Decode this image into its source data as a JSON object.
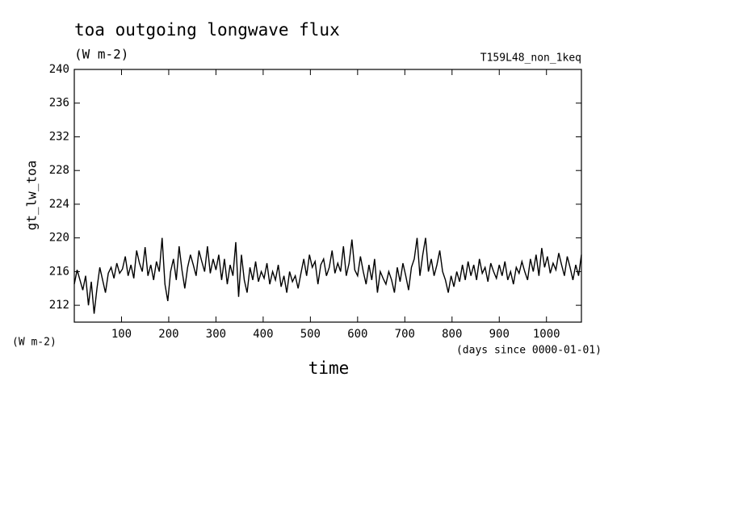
{
  "chart_data": {
    "type": "line",
    "title": "toa outgoing longwave flux",
    "subtitle": "(W m-2)",
    "annotation": "T159L48_non_1keq",
    "ylabel": "gt_lw_toa",
    "yunit": "(W m-2)",
    "xunit": "(days since 0000-01-01)",
    "xlabel": "time",
    "xlim": [
      0,
      1074
    ],
    "ylim": [
      210,
      240
    ],
    "xticks": [
      100,
      200,
      300,
      400,
      500,
      600,
      700,
      800,
      900,
      1000
    ],
    "yticks": [
      212,
      216,
      220,
      224,
      228,
      232,
      236,
      240
    ],
    "series": [
      {
        "color": "#000000",
        "x": [
          0,
          6,
          12,
          18,
          24,
          30,
          36,
          42,
          48,
          54,
          60,
          66,
          72,
          78,
          84,
          90,
          96,
          102,
          108,
          114,
          120,
          126,
          132,
          138,
          144,
          150,
          156,
          162,
          168,
          174,
          180,
          186,
          192,
          198,
          204,
          210,
          216,
          222,
          228,
          234,
          240,
          246,
          252,
          258,
          264,
          270,
          276,
          282,
          288,
          294,
          300,
          306,
          312,
          318,
          324,
          330,
          336,
          342,
          348,
          354,
          360,
          366,
          372,
          378,
          384,
          390,
          396,
          402,
          408,
          414,
          420,
          426,
          432,
          438,
          444,
          450,
          456,
          462,
          468,
          474,
          480,
          486,
          492,
          498,
          504,
          510,
          516,
          522,
          528,
          534,
          540,
          546,
          552,
          558,
          564,
          570,
          576,
          582,
          588,
          594,
          600,
          606,
          612,
          618,
          624,
          630,
          636,
          642,
          648,
          654,
          660,
          666,
          672,
          678,
          684,
          690,
          696,
          702,
          708,
          714,
          720,
          726,
          732,
          738,
          744,
          750,
          756,
          762,
          768,
          774,
          780,
          786,
          792,
          798,
          804,
          810,
          816,
          822,
          828,
          834,
          840,
          846,
          852,
          858,
          864,
          870,
          876,
          882,
          888,
          894,
          900,
          906,
          912,
          918,
          924,
          930,
          936,
          942,
          948,
          954,
          960,
          966,
          972,
          978,
          984,
          990,
          996,
          1002,
          1008,
          1014,
          1020,
          1026,
          1032,
          1038,
          1044,
          1050,
          1056,
          1062,
          1068,
          1074
        ],
        "values": [
          214.5,
          216.2,
          215.0,
          213.8,
          215.5,
          212.0,
          214.8,
          211.0,
          214.0,
          216.5,
          215.0,
          213.5,
          215.8,
          216.5,
          215.2,
          217.0,
          215.8,
          216.3,
          217.8,
          215.5,
          216.8,
          215.2,
          218.5,
          217.0,
          216.0,
          218.9,
          215.5,
          216.8,
          215.0,
          217.2,
          216.0,
          220.0,
          214.5,
          212.5,
          216.0,
          217.5,
          215.0,
          219.0,
          216.2,
          214.0,
          216.5,
          218.0,
          216.8,
          215.5,
          218.5,
          217.2,
          216.0,
          219.0,
          215.8,
          217.5,
          216.2,
          218.0,
          215.0,
          217.5,
          214.5,
          216.8,
          215.5,
          219.5,
          213.0,
          218.0,
          215.0,
          213.5,
          216.5,
          215.0,
          217.2,
          214.8,
          216.0,
          215.2,
          217.0,
          214.5,
          216.0,
          215.0,
          216.8,
          214.2,
          215.5,
          213.5,
          216.0,
          214.8,
          215.5,
          214.0,
          215.8,
          217.5,
          215.5,
          218.0,
          216.5,
          217.2,
          214.5,
          216.8,
          217.5,
          215.5,
          216.5,
          218.5,
          215.8,
          217.0,
          216.0,
          219.0,
          215.5,
          217.0,
          219.8,
          216.2,
          215.5,
          217.8,
          216.0,
          214.5,
          216.8,
          215.0,
          217.5,
          213.5,
          216.0,
          215.2,
          214.5,
          216.0,
          215.0,
          213.5,
          216.5,
          214.8,
          217.0,
          215.5,
          213.8,
          216.5,
          217.5,
          220.0,
          215.5,
          218.0,
          220.0,
          216.0,
          217.5,
          215.5,
          216.8,
          218.5,
          216.0,
          215.0,
          213.5,
          215.5,
          214.2,
          216.0,
          214.8,
          216.8,
          215.0,
          217.2,
          215.5,
          216.8,
          215.0,
          217.5,
          215.8,
          216.5,
          214.8,
          217.0,
          216.0,
          215.2,
          216.8,
          215.5,
          217.2,
          215.0,
          216.0,
          214.5,
          216.5,
          215.8,
          217.2,
          216.0,
          215.0,
          217.5,
          216.0,
          218.0,
          215.5,
          218.8,
          216.5,
          217.8,
          215.8,
          217.0,
          216.2,
          218.2,
          216.8,
          215.5,
          217.8,
          216.5,
          215.0,
          216.8,
          215.5,
          218.0
        ]
      }
    ]
  }
}
